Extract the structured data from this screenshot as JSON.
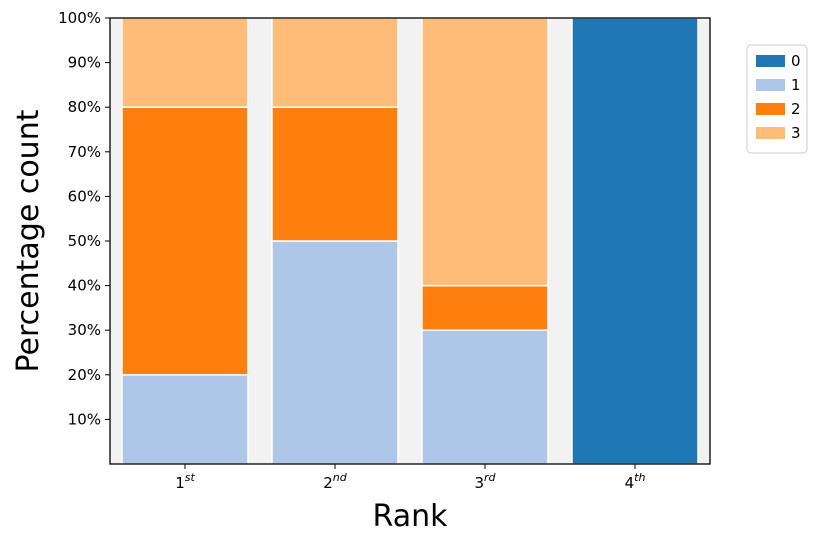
{
  "chart_data": {
    "type": "bar",
    "stacked": true,
    "normalized_percent": true,
    "categories": [
      {
        "base": "1",
        "sup": "st"
      },
      {
        "base": "2",
        "sup": "nd"
      },
      {
        "base": "3",
        "sup": "rd"
      },
      {
        "base": "4",
        "sup": "th"
      }
    ],
    "series": [
      {
        "name": "0",
        "color": "#1f77b4",
        "values": [
          0,
          0,
          0,
          100
        ]
      },
      {
        "name": "1",
        "color": "#aec7e8",
        "values": [
          20,
          50,
          30,
          0
        ]
      },
      {
        "name": "2",
        "color": "#ff7f0e",
        "values": [
          60,
          30,
          10,
          0
        ]
      },
      {
        "name": "3",
        "color": "#ffbb78",
        "values": [
          20,
          20,
          60,
          0
        ]
      }
    ],
    "xlabel": "Rank",
    "ylabel": "Percentage count",
    "ylim": [
      0,
      100
    ],
    "yticks": [
      10,
      20,
      30,
      40,
      50,
      60,
      70,
      80,
      90,
      100
    ],
    "ytick_labels": [
      "10%",
      "20%",
      "30%",
      "40%",
      "50%",
      "60%",
      "70%",
      "80%",
      "90%",
      "100%"
    ],
    "grid": false,
    "legend_position": "outside-right-top",
    "plot_background": "#f2f2f2",
    "bar_edge_color": "#ffffff"
  }
}
